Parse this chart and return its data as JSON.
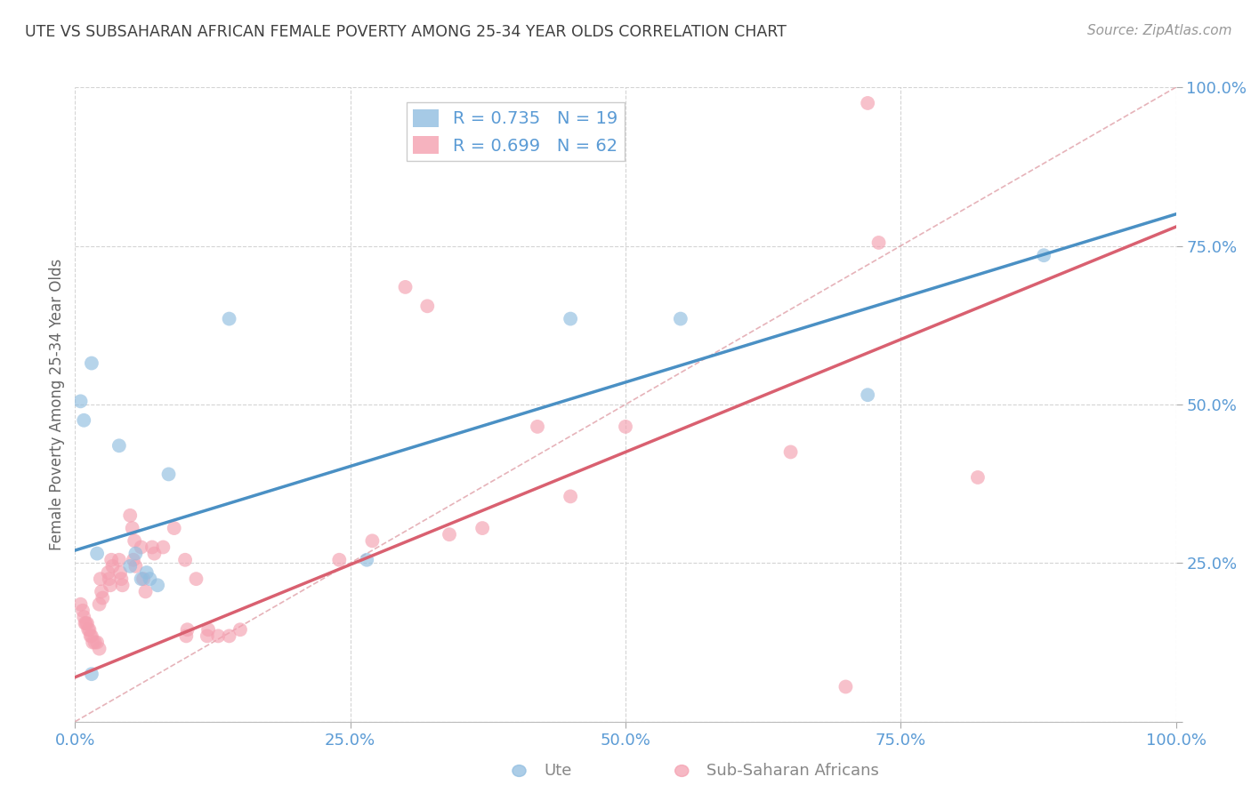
{
  "title": "UTE VS SUBSAHARAN AFRICAN FEMALE POVERTY AMONG 25-34 YEAR OLDS CORRELATION CHART",
  "source": "Source: ZipAtlas.com",
  "ylabel": "Female Poverty Among 25-34 Year Olds",
  "xlim": [
    0,
    1
  ],
  "ylim": [
    0,
    1
  ],
  "xticks": [
    0.0,
    0.25,
    0.5,
    0.75,
    1.0
  ],
  "yticks": [
    0.0,
    0.25,
    0.5,
    0.75,
    1.0
  ],
  "xticklabels": [
    "0.0%",
    "25.0%",
    "50.0%",
    "75.0%",
    "100.0%"
  ],
  "yticklabels": [
    "",
    "25.0%",
    "50.0%",
    "75.0%",
    "100.0%"
  ],
  "ute_color": "#90bde0",
  "ssa_color": "#f4a0b0",
  "ute_line_color": "#4a90c4",
  "ssa_line_color": "#d96070",
  "diag_line_color": "#e0a0a8",
  "background_color": "#ffffff",
  "grid_color": "#d0d0d0",
  "tick_color": "#5b9bd5",
  "title_color": "#404040",
  "legend_label1": "R = 0.735   N = 19",
  "legend_label2": "R = 0.699   N = 62",
  "ute_line": [
    0.0,
    0.27,
    1.0,
    0.8
  ],
  "ssa_line": [
    0.0,
    0.07,
    1.0,
    0.78
  ],
  "ute_points": [
    [
      0.005,
      0.505
    ],
    [
      0.008,
      0.475
    ],
    [
      0.015,
      0.565
    ],
    [
      0.02,
      0.265
    ],
    [
      0.04,
      0.435
    ],
    [
      0.05,
      0.245
    ],
    [
      0.055,
      0.265
    ],
    [
      0.06,
      0.225
    ],
    [
      0.065,
      0.235
    ],
    [
      0.068,
      0.225
    ],
    [
      0.075,
      0.215
    ],
    [
      0.085,
      0.39
    ],
    [
      0.14,
      0.635
    ],
    [
      0.265,
      0.255
    ],
    [
      0.45,
      0.635
    ],
    [
      0.55,
      0.635
    ],
    [
      0.72,
      0.515
    ],
    [
      0.88,
      0.735
    ],
    [
      0.015,
      0.075
    ]
  ],
  "ssa_points": [
    [
      0.005,
      0.185
    ],
    [
      0.007,
      0.175
    ],
    [
      0.008,
      0.165
    ],
    [
      0.009,
      0.155
    ],
    [
      0.01,
      0.155
    ],
    [
      0.011,
      0.155
    ],
    [
      0.012,
      0.145
    ],
    [
      0.013,
      0.145
    ],
    [
      0.014,
      0.135
    ],
    [
      0.015,
      0.135
    ],
    [
      0.016,
      0.125
    ],
    [
      0.018,
      0.125
    ],
    [
      0.02,
      0.125
    ],
    [
      0.022,
      0.115
    ],
    [
      0.022,
      0.185
    ],
    [
      0.023,
      0.225
    ],
    [
      0.024,
      0.205
    ],
    [
      0.025,
      0.195
    ],
    [
      0.03,
      0.235
    ],
    [
      0.031,
      0.225
    ],
    [
      0.032,
      0.215
    ],
    [
      0.033,
      0.255
    ],
    [
      0.034,
      0.245
    ],
    [
      0.04,
      0.255
    ],
    [
      0.041,
      0.235
    ],
    [
      0.042,
      0.225
    ],
    [
      0.043,
      0.215
    ],
    [
      0.05,
      0.325
    ],
    [
      0.052,
      0.305
    ],
    [
      0.053,
      0.255
    ],
    [
      0.054,
      0.285
    ],
    [
      0.055,
      0.245
    ],
    [
      0.06,
      0.275
    ],
    [
      0.062,
      0.225
    ],
    [
      0.064,
      0.205
    ],
    [
      0.07,
      0.275
    ],
    [
      0.072,
      0.265
    ],
    [
      0.08,
      0.275
    ],
    [
      0.09,
      0.305
    ],
    [
      0.1,
      0.255
    ],
    [
      0.101,
      0.135
    ],
    [
      0.102,
      0.145
    ],
    [
      0.11,
      0.225
    ],
    [
      0.12,
      0.135
    ],
    [
      0.121,
      0.145
    ],
    [
      0.13,
      0.135
    ],
    [
      0.14,
      0.135
    ],
    [
      0.15,
      0.145
    ],
    [
      0.24,
      0.255
    ],
    [
      0.27,
      0.285
    ],
    [
      0.3,
      0.685
    ],
    [
      0.32,
      0.655
    ],
    [
      0.34,
      0.295
    ],
    [
      0.37,
      0.305
    ],
    [
      0.42,
      0.465
    ],
    [
      0.45,
      0.355
    ],
    [
      0.5,
      0.465
    ],
    [
      0.65,
      0.425
    ],
    [
      0.7,
      0.055
    ],
    [
      0.72,
      0.975
    ],
    [
      0.73,
      0.755
    ],
    [
      0.82,
      0.385
    ]
  ]
}
